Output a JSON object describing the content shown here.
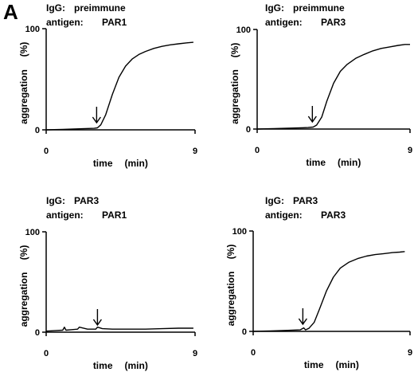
{
  "figure": {
    "panel_letter": "A"
  },
  "chart_data": [
    {
      "type": "line",
      "header": {
        "igg_label": "IgG:",
        "igg_value": "preimmune",
        "antigen_label": "antigen:",
        "antigen_value": "PAR1"
      },
      "xlabel": "time",
      "xunit": "(min)",
      "ylabel": "aggregation",
      "yunit": "(%)",
      "xlim": [
        0,
        9
      ],
      "ylim": [
        0,
        100
      ],
      "x_ticks": [
        "0",
        "9"
      ],
      "y_ticks": [
        "0",
        "100"
      ],
      "arrow_x": 3.05,
      "series": [
        {
          "x": [
            0,
            1,
            2,
            2.9,
            3.1,
            3.3,
            3.6,
            4.0,
            4.4,
            4.8,
            5.2,
            5.6,
            6.0,
            6.5,
            7.0,
            7.5,
            8.0,
            8.5,
            8.9
          ],
          "y": [
            0,
            0.5,
            1,
            1.5,
            2,
            5,
            15,
            35,
            52,
            63,
            70,
            74.5,
            77.5,
            80.5,
            82.5,
            84,
            85,
            86,
            86.5
          ]
        }
      ]
    },
    {
      "type": "line",
      "header": {
        "igg_label": "IgG:",
        "igg_value": "preimmune",
        "antigen_label": "antigen:",
        "antigen_value": "PAR3"
      },
      "xlabel": "time",
      "xunit": "(min)",
      "ylabel": "aggregation",
      "yunit": "(%)",
      "xlim": [
        0,
        9
      ],
      "ylim": [
        0,
        100
      ],
      "x_ticks": [
        "0",
        "9"
      ],
      "y_ticks": [
        "0",
        "100"
      ],
      "arrow_x": 3.25,
      "series": [
        {
          "x": [
            0,
            1,
            2,
            3.0,
            3.3,
            3.5,
            3.8,
            4.1,
            4.5,
            4.9,
            5.3,
            5.8,
            6.3,
            6.8,
            7.3,
            7.8,
            8.3,
            8.7,
            9.0
          ],
          "y": [
            0,
            0.5,
            1,
            1.5,
            2,
            4,
            12,
            28,
            46,
            58,
            65,
            71,
            75,
            78.5,
            81,
            82.5,
            84,
            85,
            85
          ]
        }
      ]
    },
    {
      "type": "line",
      "header": {
        "igg_label": "IgG:",
        "igg_value": "PAR3",
        "antigen_label": "antigen:",
        "antigen_value": "PAR1"
      },
      "xlabel": "time",
      "xunit": "(min)",
      "ylabel": "aggregation",
      "yunit": "(%)",
      "xlim": [
        0,
        9
      ],
      "ylim": [
        0,
        100
      ],
      "x_ticks": [
        "0",
        "9"
      ],
      "y_ticks": [
        "0",
        "100"
      ],
      "arrow_x": 3.1,
      "series": [
        {
          "x": [
            0,
            0.5,
            1.0,
            1.1,
            1.2,
            1.5,
            1.9,
            2.0,
            2.5,
            3.0,
            3.1,
            3.4,
            4.0,
            5.0,
            6.0,
            7.0,
            8.0,
            8.9
          ],
          "y": [
            1,
            1.5,
            2,
            5,
            2,
            2.5,
            3,
            5,
            3,
            3,
            5,
            3.5,
            3,
            3,
            3,
            3.5,
            4,
            4
          ]
        }
      ]
    },
    {
      "type": "line",
      "header": {
        "igg_label": "IgG:",
        "igg_value": "PAR3",
        "antigen_label": "antigen:",
        "antigen_value": "PAR3"
      },
      "xlabel": "time",
      "xunit": "(min)",
      "ylabel": "aggregation",
      "yunit": "(%)",
      "xlim": [
        0,
        9
      ],
      "ylim": [
        0,
        100
      ],
      "x_ticks": [
        "0",
        "9"
      ],
      "y_ticks": [
        "0",
        "100"
      ],
      "arrow_x": 2.85,
      "series": [
        {
          "x": [
            0,
            1,
            2,
            2.7,
            2.9,
            3.0,
            3.2,
            3.5,
            3.8,
            4.2,
            4.6,
            5.0,
            5.5,
            6.0,
            6.5,
            7.0,
            7.5,
            8.0,
            8.4,
            8.7
          ],
          "y": [
            0,
            0.5,
            1,
            1.5,
            3.5,
            1.5,
            3,
            9,
            22,
            40,
            54,
            63,
            69,
            72.5,
            75,
            76.5,
            77.5,
            78.5,
            79,
            79.5
          ]
        }
      ]
    }
  ]
}
